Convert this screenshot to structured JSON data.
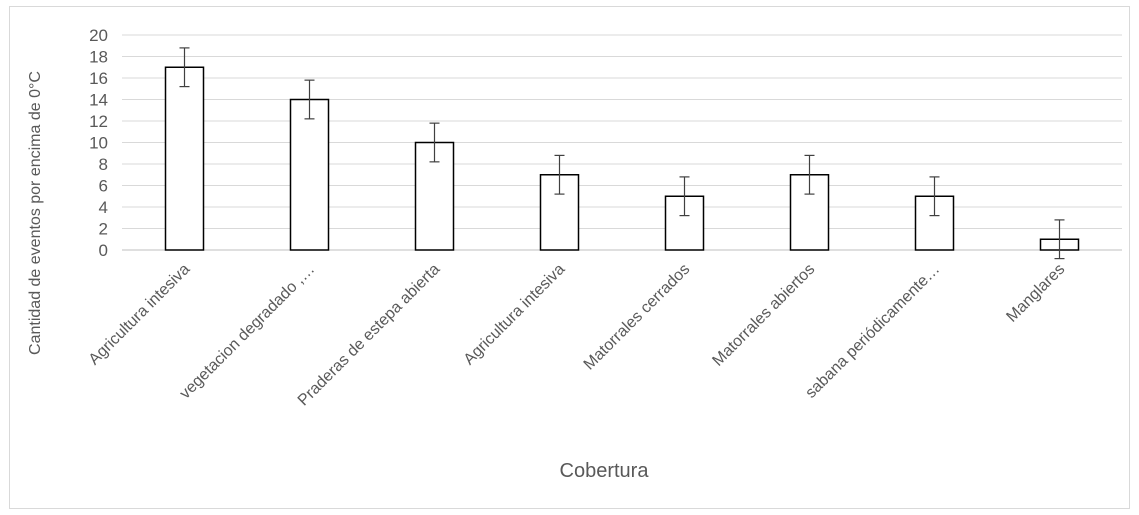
{
  "chart_data": {
    "type": "bar",
    "title": "",
    "xlabel": "Cobertura",
    "ylabel": "Cantidad de eventos por encima de 0°C",
    "categories": [
      "Agricultura intesiva",
      "vegetacion degradado ,…",
      "Praderas de estepa abierta",
      "Agricultura intesiva",
      "Matorrales cerrados",
      "Matorrales abiertos",
      "sabana periódicamente…",
      "Manglares"
    ],
    "values": [
      17,
      14,
      10,
      7,
      5,
      7,
      5,
      1
    ],
    "error": [
      1.8,
      1.8,
      1.8,
      1.8,
      1.8,
      1.8,
      1.8,
      1.8
    ],
    "ylim": [
      0,
      20
    ],
    "yticks": [
      "0",
      "2",
      "4",
      "6",
      "8",
      "10",
      "12",
      "14",
      "16",
      "18",
      "20"
    ],
    "grid": true,
    "legend": "none",
    "colors": {
      "bar_fill": "#ffffff",
      "bar_stroke": "#000000",
      "grid": "#d9d9d9",
      "text": "#595959",
      "error_bar": "#404040"
    }
  }
}
